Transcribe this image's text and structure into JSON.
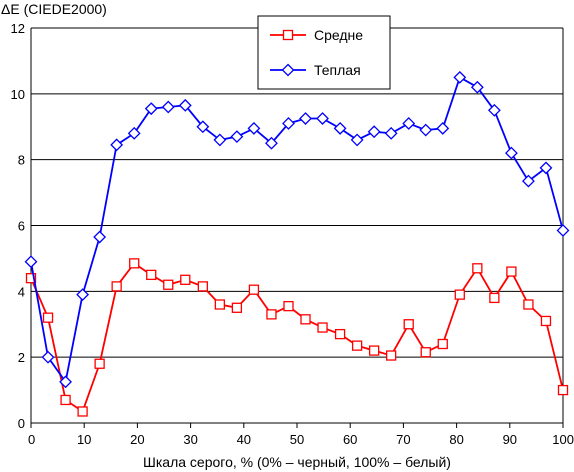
{
  "chart_data": {
    "type": "line",
    "ylabel": "ΔE (CIEDE2000)",
    "xlabel": "Шкала серого, % (0% – черный, 100% – белый)",
    "xlim": [
      0,
      100
    ],
    "ylim": [
      0,
      12
    ],
    "xticks": [
      0,
      10,
      20,
      30,
      40,
      50,
      60,
      70,
      80,
      90,
      100
    ],
    "yticks": [
      0,
      2,
      4,
      6,
      8,
      10,
      12
    ],
    "grid": "horizontal",
    "legend_position": "top-center",
    "x": [
      0,
      3.2,
      6.5,
      9.7,
      12.9,
      16.1,
      19.4,
      22.6,
      25.8,
      29.0,
      32.3,
      35.5,
      38.7,
      41.9,
      45.2,
      48.4,
      51.6,
      54.8,
      58.1,
      61.3,
      64.5,
      67.7,
      71.0,
      74.2,
      77.4,
      80.6,
      83.9,
      87.1,
      90.3,
      93.5,
      96.8,
      100
    ],
    "series": [
      {
        "name": "Средне",
        "color": "#ff0000",
        "marker": "square",
        "values": [
          4.4,
          3.2,
          0.7,
          0.35,
          1.8,
          4.15,
          4.85,
          4.5,
          4.2,
          4.35,
          4.15,
          3.6,
          3.5,
          4.05,
          3.3,
          3.55,
          3.15,
          2.9,
          2.7,
          2.35,
          2.2,
          2.05,
          3.0,
          2.15,
          2.4,
          3.9,
          4.7,
          3.8,
          4.6,
          3.6,
          3.1,
          1.0
        ]
      },
      {
        "name": "Теплая",
        "color": "#0000ff",
        "marker": "diamond",
        "values": [
          4.9,
          2.0,
          1.25,
          3.9,
          5.65,
          8.45,
          8.8,
          9.55,
          9.6,
          9.65,
          9.0,
          8.6,
          8.7,
          8.95,
          8.5,
          9.1,
          9.25,
          9.25,
          8.95,
          8.6,
          8.85,
          8.8,
          9.1,
          8.9,
          8.95,
          10.5,
          10.2,
          9.5,
          8.2,
          7.35,
          7.75,
          5.85
        ]
      }
    ]
  }
}
